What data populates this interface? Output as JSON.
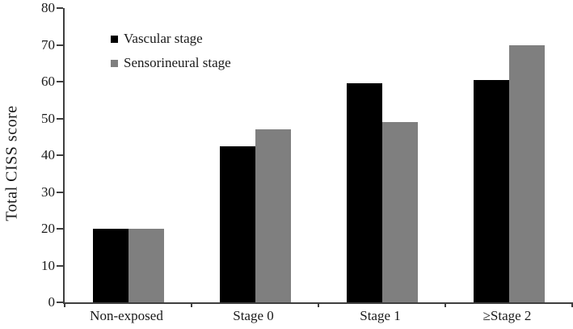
{
  "figure": {
    "background": "#ffffff",
    "text_color": "#1a1a1a",
    "axis_color": "#3f3f3f"
  },
  "chart_data": {
    "type": "bar",
    "title": "",
    "xlabel": "",
    "ylabel": "Total CISS score",
    "categories": [
      "Non-exposed",
      "Stage 0",
      "Stage 1",
      "≥Stage 2"
    ],
    "series": [
      {
        "name": "Vascular stage",
        "color": "#000000",
        "values": [
          20,
          42.5,
          59.5,
          60.5
        ]
      },
      {
        "name": "Sensorineural stage",
        "color": "#7f7f7f",
        "values": [
          20,
          47,
          49,
          70
        ]
      }
    ],
    "ylim": [
      0,
      80
    ],
    "ytick_step": 10,
    "ytick_labels": [
      "0",
      "10",
      "20",
      "30",
      "40",
      "50",
      "60",
      "70",
      "80"
    ],
    "grid": false,
    "legend_position": "top-left-inside",
    "bar_gap_within_pair": 0
  }
}
